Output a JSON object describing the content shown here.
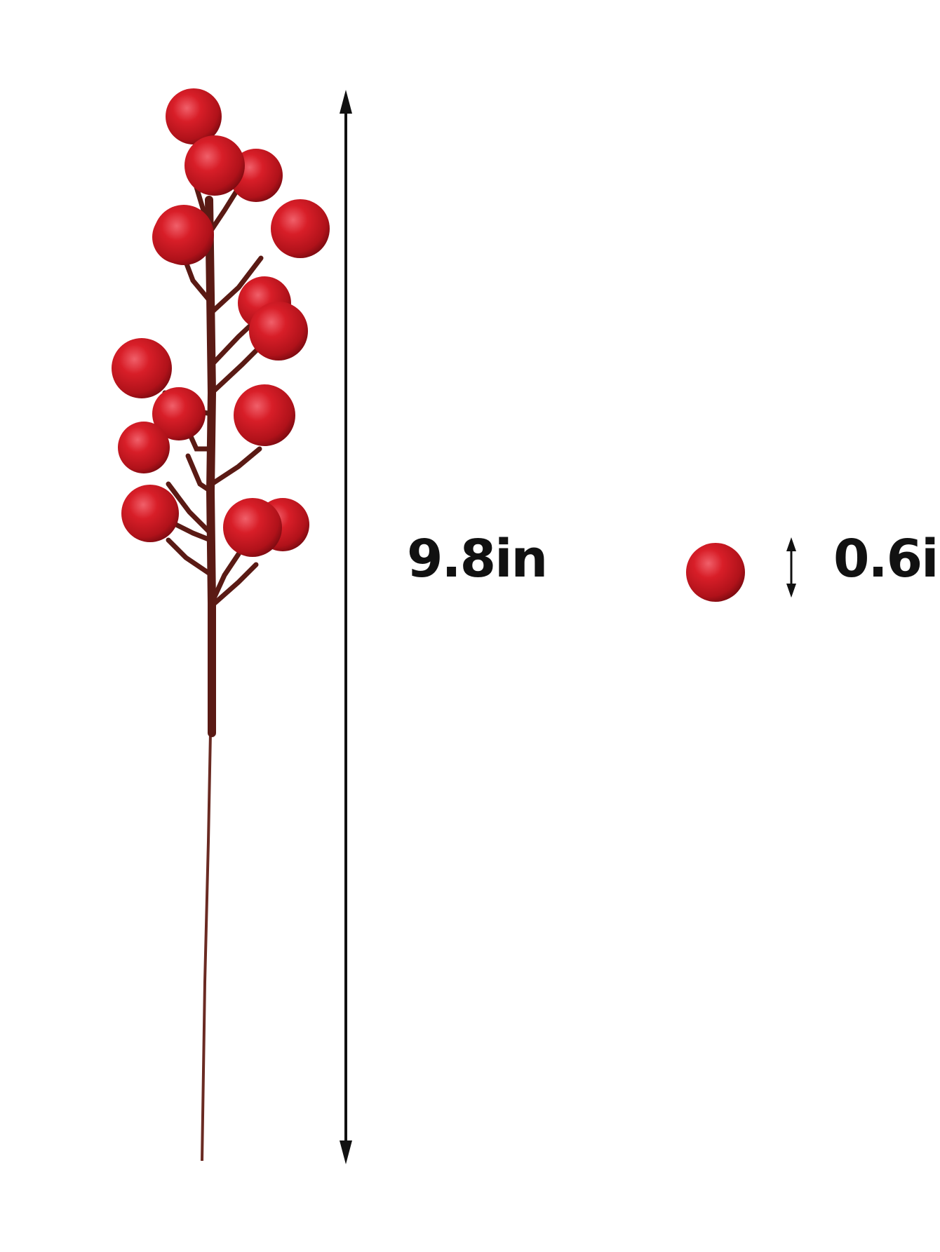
{
  "product": {
    "name_visible": "",
    "berry_color": "#c4161c",
    "stem_color": "#5a1a14"
  },
  "dimensions": {
    "length_label": "9.8in",
    "berry_diameter_label": "0.6i"
  },
  "icons": {
    "length_arrow": "double-headed-vertical-arrow-icon",
    "diameter_arrow": "small-double-headed-vertical-arrow-icon"
  }
}
